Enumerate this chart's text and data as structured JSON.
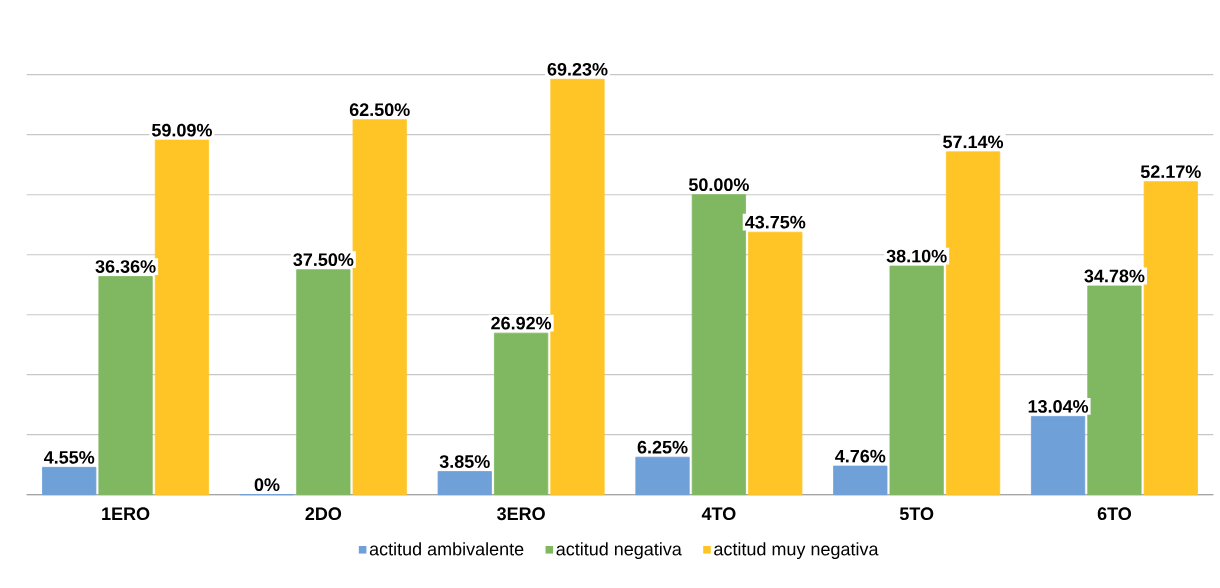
{
  "chart_data": {
    "type": "bar",
    "categories": [
      "1ERO",
      "2DO",
      "3ERO",
      "4TO",
      "5TO",
      "6TO"
    ],
    "series": [
      {
        "name": "actitud ambivalente",
        "color": "#6fa0d8",
        "values": [
          4.55,
          0,
          3.85,
          6.25,
          4.76,
          13.04
        ],
        "value_labels": [
          "4.55%",
          "0%",
          "3.85%",
          "6.25%",
          "4.76%",
          "13.04%"
        ]
      },
      {
        "name": "actitud negativa",
        "color": "#80b862",
        "values": [
          36.36,
          37.5,
          26.92,
          50.0,
          38.1,
          34.78
        ],
        "value_labels": [
          "36.36%",
          "37.50%",
          "26.92%",
          "50.00%",
          "38.10%",
          "34.78%"
        ]
      },
      {
        "name": "actitud muy negativa",
        "color": "#ffc526",
        "values": [
          59.09,
          62.5,
          69.23,
          43.75,
          57.14,
          52.17
        ],
        "value_labels": [
          "59.09%",
          "62.50%",
          "69.23%",
          "43.75%",
          "57.14%",
          "52.17%"
        ]
      }
    ],
    "ylim": [
      0,
      70
    ],
    "yticks": [
      {
        "value": 0,
        "label": null
      },
      {
        "value": 10,
        "label": null
      },
      {
        "value": 20,
        "label": null
      },
      {
        "value": 30,
        "label": null
      },
      {
        "value": 40,
        "label": null
      },
      {
        "value": 50,
        "label": null
      },
      {
        "value": 60,
        "label": null
      },
      {
        "value": 70,
        "label": null
      }
    ],
    "grid": "y",
    "legend": "bottom",
    "tick_labels": "x"
  }
}
